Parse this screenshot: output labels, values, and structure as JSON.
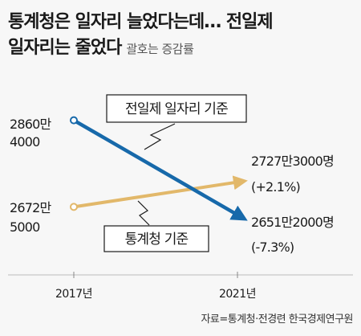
{
  "headline": {
    "line1": "통계청은 일자리 늘었다는데… 전일제",
    "line2": "일자리는 줄었다",
    "subnote": "괄호는 증감률"
  },
  "source": "자료=통계청·전경련 한국경제연구원",
  "colors": {
    "blue_series": "#1769aa",
    "gold_series": "#e2b86a",
    "text": "#1a1a1a",
    "gridline": "#bbbbbb",
    "background": "#f7f7f7"
  },
  "chart_data": {
    "type": "line",
    "x": [
      "2017년",
      "2021년"
    ],
    "series": [
      {
        "name": "전일제 일자리 기준",
        "values": [
          28604000,
          26512000
        ],
        "start_label_lines": [
          "2860만",
          "4000"
        ],
        "end_label_lines": [
          "2651만2000명",
          "(-7.3%)"
        ],
        "change_pct": -7.3
      },
      {
        "name": "통계청 기준",
        "values": [
          26725000,
          27273000
        ],
        "start_label_lines": [
          "2672만",
          "5000"
        ],
        "end_label_lines": [
          "2727만3000명",
          "(+2.1%)"
        ],
        "change_pct": 2.1
      }
    ],
    "xlabel": "",
    "ylabel": "",
    "grid": false
  }
}
